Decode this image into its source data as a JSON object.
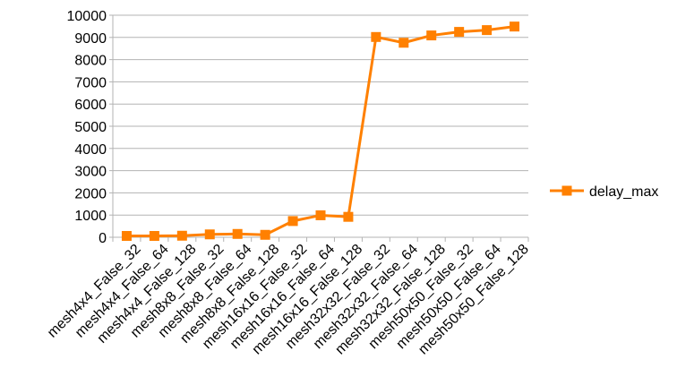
{
  "chart_data": {
    "type": "line",
    "title": "",
    "xlabel": "",
    "ylabel": "",
    "categories": [
      "mesh4x4_False_32",
      "mesh4x4_False_64",
      "mesh4x4_False_128",
      "mesh8x8_False_32",
      "mesh8x8_False_64",
      "mesh8x8_False_128",
      "mesh16x16_False_32",
      "mesh16x16_False_64",
      "mesh16x16_False_128",
      "mesh32x32_False_32",
      "mesh32x32_False_64",
      "mesh32x32_False_128",
      "mesh50x50_False_32",
      "mesh50x50_False_64",
      "mesh50x50_False_128"
    ],
    "ylim": [
      0,
      10000
    ],
    "yticks": [
      0,
      1000,
      2000,
      3000,
      4000,
      5000,
      6000,
      7000,
      8000,
      9000,
      10000
    ],
    "grid": true,
    "legend_position": "right",
    "series": [
      {
        "name": "delay_max",
        "color": "#ff8000",
        "marker": "square",
        "values": [
          60,
          60,
          70,
          130,
          150,
          110,
          730,
          990,
          920,
          9020,
          8760,
          9090,
          9250,
          9330,
          9490
        ]
      }
    ]
  }
}
